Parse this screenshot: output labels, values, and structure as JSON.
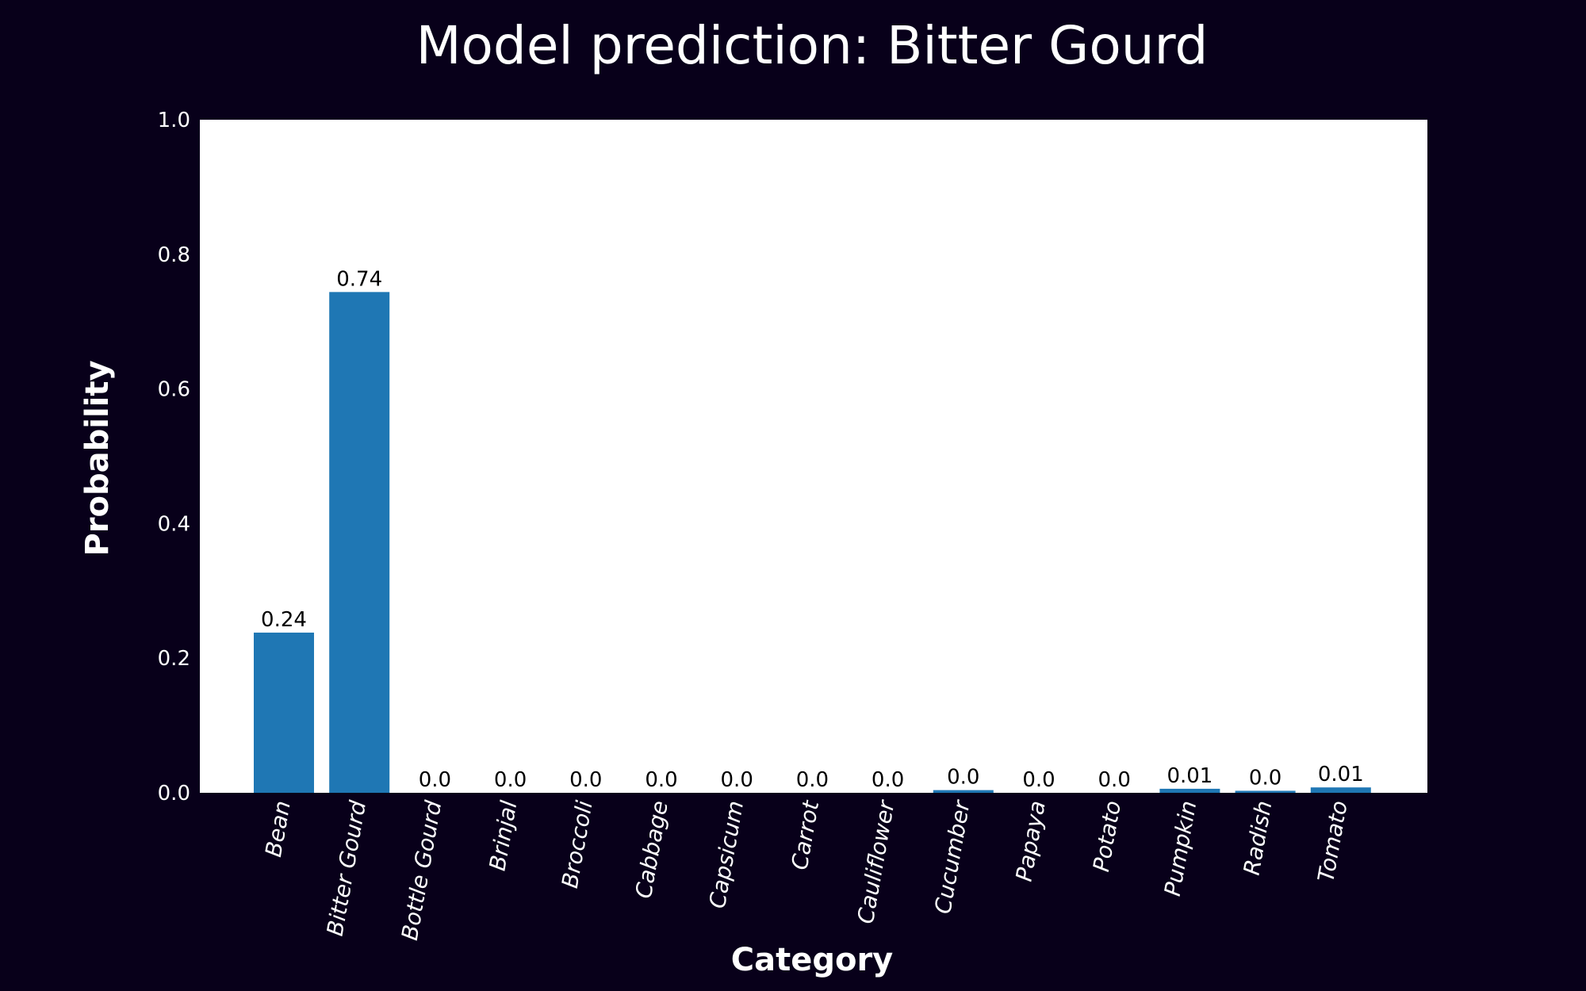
{
  "chart_data": {
    "type": "bar",
    "title": "Model prediction: Bitter Gourd",
    "xlabel": "Category",
    "ylabel": "Probability",
    "ylim": [
      0,
      1.0
    ],
    "yticks": [
      "0.0",
      "0.2",
      "0.4",
      "0.6",
      "0.8",
      "1.0"
    ],
    "grid": false,
    "categories": [
      "Bean",
      "Bitter Gourd",
      "Bottle Gourd",
      "Brinjal",
      "Broccoli",
      "Cabbage",
      "Capsicum",
      "Carrot",
      "Cauliflower",
      "Cucumber",
      "Papaya",
      "Potato",
      "Pumpkin",
      "Radish",
      "Tomato"
    ],
    "values": [
      0.238,
      0.744,
      0.0,
      0.0,
      0.0,
      0.0,
      0.0,
      0.0,
      0.0,
      0.004,
      0.0,
      0.0,
      0.006,
      0.003,
      0.008
    ],
    "data_labels": [
      "0.24",
      "0.74",
      "0.0",
      "0.0",
      "0.0",
      "0.0",
      "0.0",
      "0.0",
      "0.0",
      "0.0",
      "0.0",
      "0.0",
      "0.01",
      "0.0",
      "0.01"
    ],
    "colors": {
      "background": "#08001a",
      "plot_area": "#ffffff",
      "bar": "#1f77b4",
      "text": "#ffffff",
      "data_label": "#000000"
    }
  }
}
